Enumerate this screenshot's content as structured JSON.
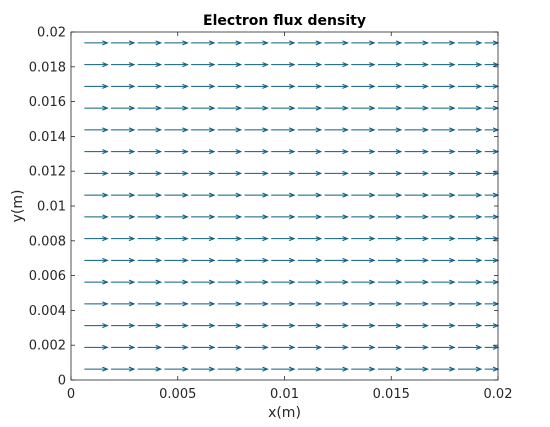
{
  "chart_data": {
    "type": "quiver",
    "title": "Electron flux density",
    "xlabel": "x(m)",
    "ylabel": "y(m)",
    "xlim": [
      0,
      0.02
    ],
    "ylim": [
      0,
      0.02
    ],
    "xticks": [
      0,
      0.005,
      0.01,
      0.015,
      0.02
    ],
    "yticks": [
      0,
      0.002,
      0.004,
      0.006,
      0.008,
      0.01,
      0.012,
      0.014,
      0.016,
      0.018,
      0.02
    ],
    "xtick_labels": [
      "0",
      "0.005",
      "0.01",
      "0.015",
      "0.02"
    ],
    "ytick_labels": [
      "0",
      "0.002",
      "0.004",
      "0.006",
      "0.008",
      "0.01",
      "0.012",
      "0.014",
      "0.016",
      "0.018",
      "0.02"
    ],
    "grid": false,
    "arrow_color": "#0b5f80",
    "grid_x_start": 0.000625,
    "grid_x_step": 0.00125,
    "grid_x_count": 16,
    "grid_y_start": 0.000625,
    "grid_y_step": 0.00125,
    "grid_y_count": 16,
    "vector_direction": "+x",
    "vector_magnitude_relative": 1.0
  }
}
